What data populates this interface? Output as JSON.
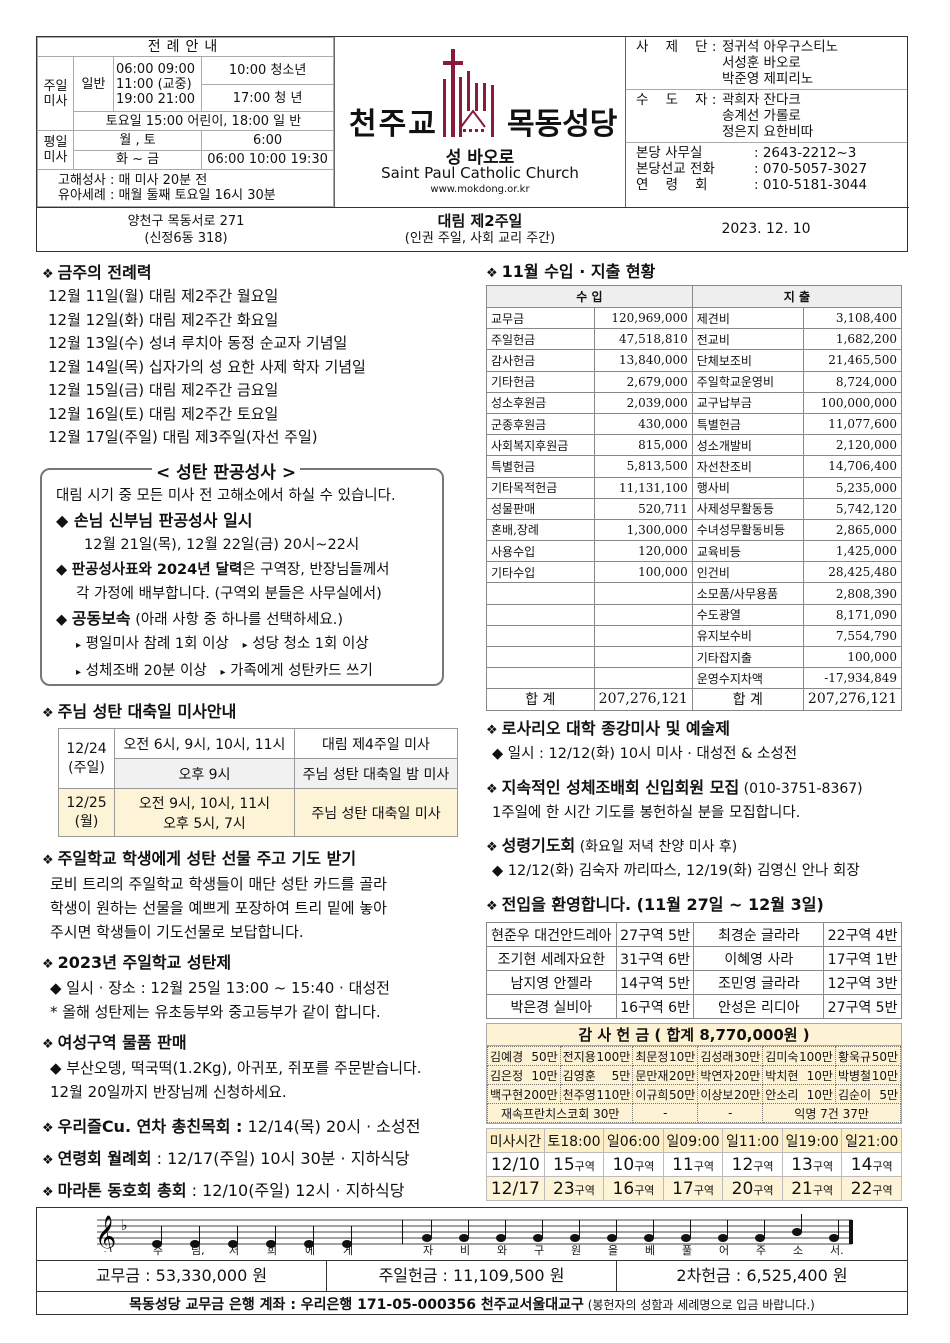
{
  "header": {
    "info_title": "전례안내",
    "sunday_label": "주일 미사",
    "general_label": "일반",
    "sunday_times": [
      "06:00  09:00",
      "11:00 (교중)",
      "19:00  21:00"
    ],
    "youth": "10:00 청소년",
    "young": "17:00 청 년",
    "saturday": "토요일 15:00 어린이, 18:00 일 반",
    "weekday_label": "평일 미사",
    "mon_sat": "월 , 토",
    "mon_sat_time": "6:00",
    "tue_fri": "화 ~ 금",
    "tue_fri_time": "06:00  10:00  19:30",
    "confession": "고해성사 : 매 미사 20분 전",
    "baptism": "유아세례 : 매월 둘째 토요일 16시 30분",
    "logo": {
      "left": "천주교",
      "right": "목동성당",
      "patron": "성 바오로",
      "english": "Saint Paul Catholic Church",
      "url": "www.mokdong.or.kr",
      "color": "#8b1a3a"
    },
    "priests_label": "사    제    단 :",
    "priests": [
      "정귀석 아우구스티노",
      "서성훈 바오로",
      "박준영 제피리노"
    ],
    "sisters_label": "수    도    자 :",
    "sisters": [
      "곽희자 잔다크",
      "송계선 가롤로",
      "정은지 요한비따"
    ],
    "contacts": [
      {
        "k": "본당 사무실",
        "v": ": 2643-2212~3"
      },
      {
        "k": "본당선교 전화",
        "v": ": 070-5057-3027"
      },
      {
        "k": "연    령    회",
        "v": ": 010-5181-3044"
      }
    ],
    "address": "양천구 목동서로 271",
    "address2": "(신정6동 318)",
    "sunday_title": "대림 제2주일",
    "sunday_sub": "(인권 주일, 사회 교리 주간)",
    "date": "2023.  12.  10"
  },
  "liturgy": {
    "title": "금주의 전례력",
    "items": [
      "12월 11일(월) 대림 제2주간 월요일",
      "12월 12일(화) 대림 제2주간 화요일",
      "12월 13일(수) 성녀 루치아 동정 순교자 기념일",
      "12월 14일(목) 십자가의 성 요한 사제 학자 기념일",
      "12월 15일(금) 대림 제2주간 금요일",
      "12월 16일(토) 대림 제2주간 토요일",
      "12월 17일(주일) 대림 제3주일(자선 주일)"
    ]
  },
  "confession_box": {
    "title": "< 성탄 판공성사 >",
    "intro": "대림 시기 중 모든 미사 전 고해소에서 하실 수 있습니다.",
    "b1": "손님 신부님 판공성사 일시",
    "b1_sub": "12월 21일(목), 12월 22일(금) 20시~22시",
    "b2_bold": "판공성사표와 2024년 달력",
    "b2": "은 구역장, 반장님들께서",
    "b2_sub": "각 가정에 배부합니다. (구역외 분들은 사무실에서)",
    "b3_bold": "공동보속",
    "b3": " (아래 사항 중 하나를 선택하세요.)",
    "opts": [
      "평일미사 참례 1회 이상",
      "성당 청소 1회 이상",
      "성체조배 20분 이상",
      "가족에게 성탄카드 쓰기"
    ]
  },
  "christmas": {
    "title": "주님 성탄 대축일 미사안내",
    "d1": "12/24",
    "d1w": "(주일)",
    "r1t": "오전 6시, 9시, 10시, 11시",
    "r1n": "대림 제4주일 미사",
    "r2t": "오후 9시",
    "r2n": "주님 성탄 대축일 밤 미사",
    "d2": "12/25",
    "d2w": "(월)",
    "r3t": "오전 9시, 10시, 11시",
    "r3t2": "오후 5시, 7시",
    "r3n": "주님 성탄 대축일 미사"
  },
  "left_notices": [
    {
      "title": "주일학교 학생에게 성탄 선물 주고 기도 받기",
      "lines": [
        "로비 트리의 주일학교 학생들이 매단 성탄 카드를 골라",
        "학생이 원하는 선물을 예쁘게 포장하여 트리 밑에 놓아",
        "주시면 학생들이 기도선물로 보답합니다."
      ]
    },
    {
      "title": "2023년 주일학교 성탄제",
      "lines": [
        "◆ 일시 · 장소 : 12월 25일 13:00 ~ 15:40 · 대성전",
        "* 올해 성탄제는 유초등부와 중고등부가 같이 합니다."
      ]
    },
    {
      "title": "여성구역 물품 판매",
      "lines": [
        "◆ 부산오뎅, 떡국떡(1.2Kg), 아귀포, 쥐포를 주문받습니다.",
        "12월 20일까지 반장님께 신청하세요."
      ]
    }
  ],
  "short_notices": [
    {
      "bold": "우리즐Cu. 연차 총친목회 :",
      "text": " 12/14(목) 20시 · 소성전"
    },
    {
      "bold": "연령회 월례회",
      "text": " : 12/17(주일) 10시 30분 · 지하식당"
    },
    {
      "bold": "마라톤 동호회 총회",
      "text": " : 12/10(주일) 12시 · 지하식당"
    }
  ],
  "finance": {
    "title": "11월 수입 · 지출 현황",
    "income_header": "수    입",
    "expense_header": "지    출",
    "income": [
      [
        "교무금",
        "120,969,000"
      ],
      [
        "주일헌금",
        "47,518,810"
      ],
      [
        "감사헌금",
        "13,840,000"
      ],
      [
        "기타헌금",
        "2,679,000"
      ],
      [
        "성소후원금",
        "2,039,000"
      ],
      [
        "군종후원금",
        "430,000"
      ],
      [
        "사회복지후원금",
        "815,000"
      ],
      [
        "특별헌금",
        "5,813,500"
      ],
      [
        "기타목적헌금",
        "11,131,100"
      ],
      [
        "성물판매",
        "520,711"
      ],
      [
        "혼배,장례",
        "1,300,000"
      ],
      [
        "사용수입",
        "120,000"
      ],
      [
        "기타수입",
        "100,000"
      ],
      [
        "",
        ""
      ],
      [
        "",
        ""
      ],
      [
        "",
        ""
      ],
      [
        "",
        ""
      ],
      [
        "",
        ""
      ]
    ],
    "expense": [
      [
        "제견비",
        "3,108,400"
      ],
      [
        "전교비",
        "1,682,200"
      ],
      [
        "단체보조비",
        "21,465,500"
      ],
      [
        "주일학교운영비",
        "8,724,000"
      ],
      [
        "교구납부금",
        "100,000,000"
      ],
      [
        "특별헌금",
        "11,077,600"
      ],
      [
        "성소개발비",
        "2,120,000"
      ],
      [
        "자선찬조비",
        "14,706,400"
      ],
      [
        "행사비",
        "5,235,000"
      ],
      [
        "사제성무활동등",
        "5,742,120"
      ],
      [
        "수녀성무활동비등",
        "2,865,000"
      ],
      [
        "교육비등",
        "1,425,000"
      ],
      [
        "인건비",
        "28,425,480"
      ],
      [
        "소모품/사무용품",
        "2,808,390"
      ],
      [
        "수도광열",
        "8,171,090"
      ],
      [
        "유지보수비",
        "7,554,790"
      ],
      [
        "기타잡지출",
        "100,000"
      ],
      [
        "운영수지차액",
        "-17,934,849"
      ]
    ],
    "total_label": "합    계",
    "income_total": "207,276,121",
    "expense_total": "207,276,121"
  },
  "right_notices": [
    {
      "title": "로사리오 대학 종강미사 및 예술제",
      "extra": "",
      "lines": [
        "◆ 일시 : 12/12(화) 10시 미사 · 대성전 & 소성전"
      ]
    },
    {
      "title": "지속적인 성체조배회 신입회원 모집",
      "extra": " (010-3751-8367)",
      "lines": [
        "1주일에 한 시간 기도를 봉헌하실 분을 모집합니다."
      ]
    },
    {
      "title": "성령기도회",
      "extra": " (화요일 저녁 찬양 미사 후)",
      "lines": [
        "◆ 12/12(화) 김숙자 까리따스, 12/19(화) 김영신 안나 회장"
      ]
    },
    {
      "title": "전입을 환영합니다. (11월 27일 ~ 12월 3일)",
      "extra": "",
      "lines": []
    }
  ],
  "welcome": [
    [
      "현준우 대건안드레아",
      "27구역 5반",
      "최경순 글라라",
      "22구역 4반"
    ],
    [
      "조기현 세례자요한",
      "31구역 6반",
      "이혜영 사라",
      "17구역 1반"
    ],
    [
      "남지영 안젤라",
      "14구역 5반",
      "조민영 글라라",
      "12구역 3반"
    ],
    [
      "박은경 실비아",
      "16구역 6반",
      "안성은 리디아",
      "27구역 5반"
    ]
  ],
  "thanks": {
    "title": "감 사 헌 금 ( 합계 8,770,000원 )",
    "rows": [
      [
        [
          "김예경",
          "50만"
        ],
        [
          "전지용",
          "100만"
        ],
        [
          "최문정",
          "10만"
        ],
        [
          "김성래",
          "30만"
        ],
        [
          "김미숙",
          "100만"
        ],
        [
          "황욱규",
          "50만"
        ]
      ],
      [
        [
          "김은정",
          "10만"
        ],
        [
          "김영훈",
          "5만"
        ],
        [
          "문만재",
          "20만"
        ],
        [
          "박연자",
          "20만"
        ],
        [
          "박치현",
          "10만"
        ],
        [
          "박병철",
          "10만"
        ]
      ],
      [
        [
          "백구현",
          "200만"
        ],
        [
          "천주영",
          "110만"
        ],
        [
          "이규희",
          "50만"
        ],
        [
          "이상보",
          "20만"
        ],
        [
          "안소리",
          "10만"
        ],
        [
          "김순이",
          "5만"
        ]
      ]
    ],
    "last": [
      "재속프란치스코회 30만",
      "-",
      "-",
      "익명 7건 37만"
    ]
  },
  "mass_duty": {
    "header": [
      "미사시간",
      "토18:00",
      "일06:00",
      "일09:00",
      "일11:00",
      "일19:00",
      "일21:00"
    ],
    "rows": [
      {
        "date": "12/10",
        "cells": [
          "15",
          "10",
          "11",
          "12",
          "13",
          "14"
        ]
      },
      {
        "date": "12/17",
        "cells": [
          "23",
          "16",
          "17",
          "20",
          "21",
          "22"
        ]
      }
    ],
    "unit": "구역"
  },
  "music": {
    "lyrics": [
      "주",
      "님,",
      "저",
      "희",
      "에",
      "게",
      "자",
      "비",
      "와",
      "구",
      "원",
      "을",
      "베",
      "풀",
      "어",
      "주",
      "소",
      "서."
    ]
  },
  "footer": {
    "g1": "교무금 :  53,330,000 원",
    "g2": "주일헌금 :  11,109,500 원",
    "g3": "2차헌금 :  6,525,400 원",
    "bank": "목동성당 교무금 은행 계좌 : 우리은행 171-05-000356 천주교서울대교구",
    "bank_note": " (봉헌자의 성함과 세례명으로 입금 바랍니다.)"
  }
}
